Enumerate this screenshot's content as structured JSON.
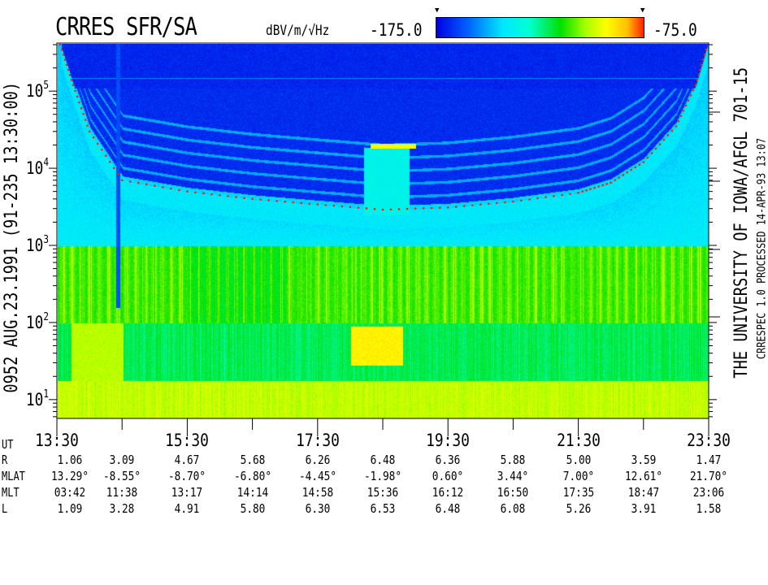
{
  "header": {
    "title": "CRRES SFR/SA",
    "units": "dBV/m/√Hz",
    "scale_min": "-175.0",
    "scale_max": "-75.0"
  },
  "left_label": "0952   AUG.23.1991   (91-235 13:30:00)",
  "right_label_1": "THE UNIVERSITY OF IOWA/AFGL 701-15",
  "right_label_2": "CRRESPEC 1.0   PROCESSED 14-APR-93   13:07",
  "chart_data": {
    "type": "heatmap",
    "title": "CRRES SFR/SA",
    "x_axis": {
      "label": "UT",
      "range": [
        "13:30",
        "23:30"
      ],
      "tick_labels": [
        "13:30",
        "15:30",
        "17:30",
        "19:30",
        "21:30",
        "23:30"
      ]
    },
    "y_axis": {
      "scale": "log",
      "range": [
        5.7,
        420000
      ],
      "tick_labels": [
        {
          "base": "10",
          "exp": "5"
        },
        {
          "base": "10",
          "exp": "4"
        },
        {
          "base": "10",
          "exp": "3"
        },
        {
          "base": "10",
          "exp": "2"
        },
        {
          "base": "10",
          "exp": "1"
        }
      ]
    },
    "colorbar": {
      "label": "dBV/m/√Hz",
      "min": -175.0,
      "max": -75.0,
      "colors": [
        "#0000e0",
        "#0060ff",
        "#00e8ff",
        "#00e000",
        "#ffff00",
        "#ff2000"
      ]
    },
    "overlay_curve": {
      "color": "#ff2000",
      "style": "dotted",
      "points": [
        [
          "13:33",
          400000
        ],
        [
          "13:45",
          120000
        ],
        [
          "14:00",
          30000
        ],
        [
          "14:30",
          7000
        ],
        [
          "15:30",
          5000
        ],
        [
          "16:30",
          4000
        ],
        [
          "17:30",
          3400
        ],
        [
          "18:30",
          2900
        ],
        [
          "19:30",
          3100
        ],
        [
          "20:30",
          3700
        ],
        [
          "21:30",
          4800
        ],
        [
          "22:00",
          6500
        ],
        [
          "22:30",
          12000
        ],
        [
          "23:00",
          35000
        ],
        [
          "23:18",
          120000
        ],
        [
          "23:29",
          400000
        ]
      ]
    }
  },
  "ephemeris": {
    "labels": {
      "ut": "UT",
      "r": "R",
      "mlat": "MLAT",
      "mlt": "MLT",
      "l": "L"
    },
    "ut": [
      "13:30",
      "15:30",
      "17:30",
      "19:30",
      "21:30",
      "23:30"
    ],
    "r": [
      "1.06",
      "3.09",
      "4.67",
      "5.68",
      "6.26",
      "6.48",
      "6.36",
      "5.88",
      "5.00",
      "3.59",
      "1.47"
    ],
    "mlat": [
      "13.29°",
      "-8.55°",
      "-8.70°",
      "-6.80°",
      "-4.45°",
      "-1.98°",
      "0.60°",
      "3.44°",
      "7.00°",
      "12.61°",
      "21.70°"
    ],
    "mlt": [
      "03:42",
      "11:38",
      "13:17",
      "14:14",
      "14:58",
      "15:36",
      "16:12",
      "16:50",
      "17:35",
      "18:47",
      "23:06"
    ],
    "l": [
      "1.09",
      "3.28",
      "4.91",
      "5.80",
      "6.30",
      "6.53",
      "6.48",
      "6.08",
      "5.26",
      "3.91",
      "1.58"
    ]
  }
}
